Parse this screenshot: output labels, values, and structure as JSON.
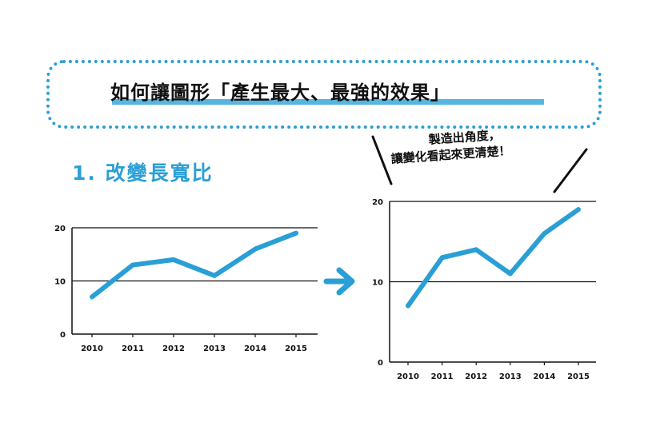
{
  "title": "如何讓圖形「產生最大、最強的效果」",
  "section_heading": "1. 改變長寬比",
  "speech_lines": [
    "製造出角度，",
    "讓變化看起來更清楚！"
  ],
  "colors": {
    "line": "#2a9fd6",
    "accent": "#2a9fd6",
    "arrow": "#2a9fd6"
  },
  "arrow_icon": "right-arrow-icon",
  "chart_data": [
    {
      "type": "line",
      "x": [
        "2010",
        "2011",
        "2012",
        "2013",
        "2014",
        "2015"
      ],
      "values": [
        7,
        13,
        14,
        11,
        16,
        19
      ],
      "ylim": [
        0,
        20
      ],
      "yticks": [
        "0",
        "10",
        "20"
      ],
      "grid": true
    },
    {
      "type": "line",
      "x": [
        "2010",
        "2011",
        "2012",
        "2013",
        "2014",
        "2015"
      ],
      "values": [
        7,
        13,
        14,
        11,
        16,
        19
      ],
      "ylim": [
        0,
        20
      ],
      "yticks": [
        "0",
        "10",
        "20"
      ],
      "grid": true
    }
  ]
}
